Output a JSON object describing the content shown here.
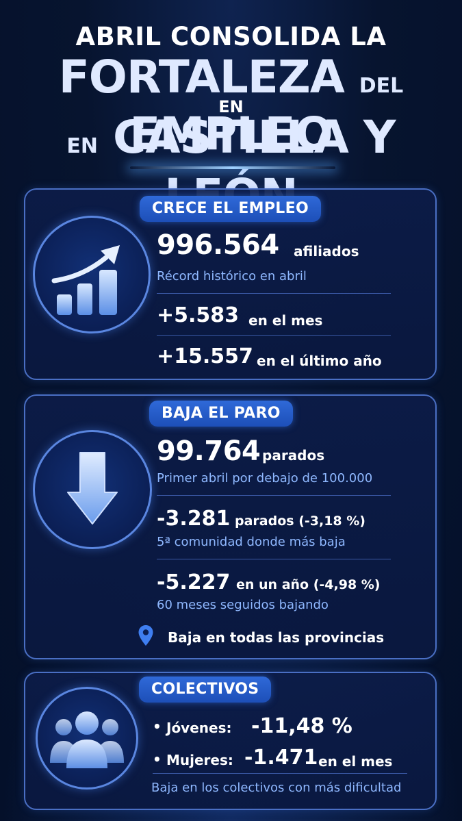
{
  "header": {
    "line1": "ABRIL CONSOLIDA LA",
    "line2_big1": "FORTALEZA",
    "line2_small": "DEL",
    "line2_big2": "EMPLEO",
    "line3": "EN",
    "line4_small": "EN",
    "line4_big": "CASTILLA Y LEÓN"
  },
  "empleo": {
    "badge": "CRECE EL EMPLEO",
    "main_value": "996.564",
    "main_unit": "afiliados",
    "main_note": "Récord histórico en abril",
    "month_value": "+5.583",
    "month_label": "en el mes",
    "year_value": "+15.557",
    "year_label": "en el último año",
    "icon": "growth-chart-icon"
  },
  "paro": {
    "badge": "BAJA EL PARO",
    "main_value": "99.764",
    "main_unit": "parados",
    "main_note": "Primer abril por debajo de 100.000",
    "month_value": "-3.281",
    "month_label": "parados (-3,18 %)",
    "month_note": "5ª comunidad donde más baja",
    "year_value": "-5.227",
    "year_label": "en un año (-4,98 %)",
    "year_note": "60 meses seguidos bajando",
    "provinces": "Baja en todas las provincias",
    "icon": "down-arrow-icon",
    "pin_icon": "location-pin-icon"
  },
  "colectivos": {
    "badge": "COLECTIVOS",
    "items": [
      {
        "label": "Jóvenes:",
        "value": "-11,48 %",
        "suffix": ""
      },
      {
        "label": "Mujeres:",
        "value": "-1.471",
        "suffix": "en el mes"
      }
    ],
    "note": "Baja en los colectivos con más dificultad",
    "icon": "people-group-icon"
  },
  "colors": {
    "accent": "#2f69d8",
    "sub_text": "#8fb8ff",
    "card_border": "#4a6fc4"
  }
}
